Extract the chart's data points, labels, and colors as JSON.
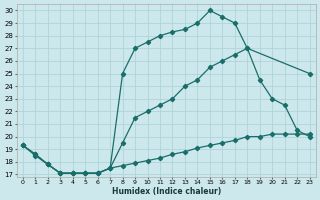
{
  "xlabel": "Humidex (Indice chaleur)",
  "bg_color": "#cde8ec",
  "grid_color": "#b0d4d8",
  "line_color": "#1a6e6a",
  "xlim": [
    -0.5,
    23.5
  ],
  "ylim": [
    16.8,
    30.5
  ],
  "xticks": [
    0,
    1,
    2,
    3,
    4,
    5,
    6,
    7,
    8,
    9,
    10,
    11,
    12,
    13,
    14,
    15,
    16,
    17,
    18,
    19,
    20,
    21,
    22,
    23
  ],
  "yticks": [
    17,
    18,
    19,
    20,
    21,
    22,
    23,
    24,
    25,
    26,
    27,
    28,
    29,
    30
  ],
  "line1_x": [
    0,
    1,
    2,
    3,
    4,
    5,
    6,
    7,
    8,
    9,
    10,
    11,
    12,
    13,
    14,
    15,
    16,
    17,
    18,
    23
  ],
  "line1_y": [
    19.3,
    18.6,
    17.8,
    17.1,
    17.1,
    17.1,
    17.1,
    17.5,
    25.0,
    27.0,
    27.5,
    28.0,
    28.3,
    28.5,
    29.0,
    30.0,
    29.5,
    29.0,
    27.0,
    25.0
  ],
  "line2_x": [
    0,
    1,
    2,
    3,
    4,
    5,
    6,
    7,
    8,
    9,
    10,
    11,
    12,
    13,
    14,
    15,
    16,
    17,
    18,
    19,
    20,
    21,
    22,
    23
  ],
  "line2_y": [
    19.3,
    18.6,
    17.8,
    17.1,
    17.1,
    17.1,
    17.1,
    17.5,
    19.5,
    21.5,
    22.0,
    22.5,
    23.0,
    24.0,
    24.5,
    25.5,
    26.0,
    26.5,
    27.0,
    24.5,
    23.0,
    22.5,
    20.5,
    20.0
  ],
  "line3_x": [
    0,
    1,
    2,
    3,
    4,
    5,
    6,
    7,
    8,
    9,
    10,
    11,
    12,
    13,
    14,
    15,
    16,
    17,
    18,
    19,
    20,
    21,
    22,
    23
  ],
  "line3_y": [
    19.3,
    18.5,
    17.8,
    17.1,
    17.1,
    17.1,
    17.1,
    17.5,
    17.7,
    17.9,
    18.1,
    18.3,
    18.6,
    18.8,
    19.1,
    19.3,
    19.5,
    19.7,
    20.0,
    20.0,
    20.2,
    20.2,
    20.2,
    20.2
  ]
}
